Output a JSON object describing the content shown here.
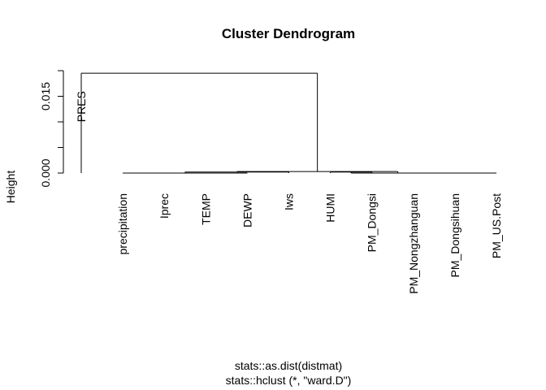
{
  "chart_data": {
    "type": "dendrogram",
    "title": "Cluster Dendrogram",
    "ylabel": "Height",
    "sub_lines": [
      "stats::as.dist(distmat)",
      "stats::hclust (*, \"ward.D\")"
    ],
    "ylim": [
      0,
      0.02
    ],
    "yticks": [
      {
        "value": 0.0,
        "label": "0.000"
      },
      {
        "value": 0.005,
        "label": ""
      },
      {
        "value": 0.01,
        "label": ""
      },
      {
        "value": 0.015,
        "label": "0.015"
      },
      {
        "value": 0.02,
        "label": ""
      }
    ],
    "leaves": [
      "PRES",
      "precipitation",
      "Iprec",
      "TEMP",
      "DEWP",
      "Iws",
      "HUMI",
      "PM_Dongsi",
      "PM_Nongzhanguan",
      "PM_Dongsihuan",
      "PM_US.Post"
    ],
    "merges": [
      {
        "a": "leaf:1",
        "b": "leaf:2",
        "height": 0.0
      },
      {
        "a": "leaf:3",
        "b": "leaf:4",
        "height": 0.0
      },
      {
        "a": "merge:0",
        "b": "merge:1",
        "height": 0.0
      },
      {
        "a": "merge:2",
        "b": "leaf:5",
        "height": 0.0002
      },
      {
        "a": "leaf:6",
        "b": "leaf:7",
        "height": 0.0002
      },
      {
        "a": "leaf:9",
        "b": "leaf:10",
        "height": 0.0
      },
      {
        "a": "leaf:8",
        "b": "merge:5",
        "height": 0.0
      },
      {
        "a": "merge:4",
        "b": "merge:6",
        "height": 0.0
      },
      {
        "a": "merge:3",
        "b": "merge:7",
        "height": 0.0003
      },
      {
        "a": "leaf:0",
        "b": "merge:8",
        "height": 0.0195
      }
    ]
  }
}
